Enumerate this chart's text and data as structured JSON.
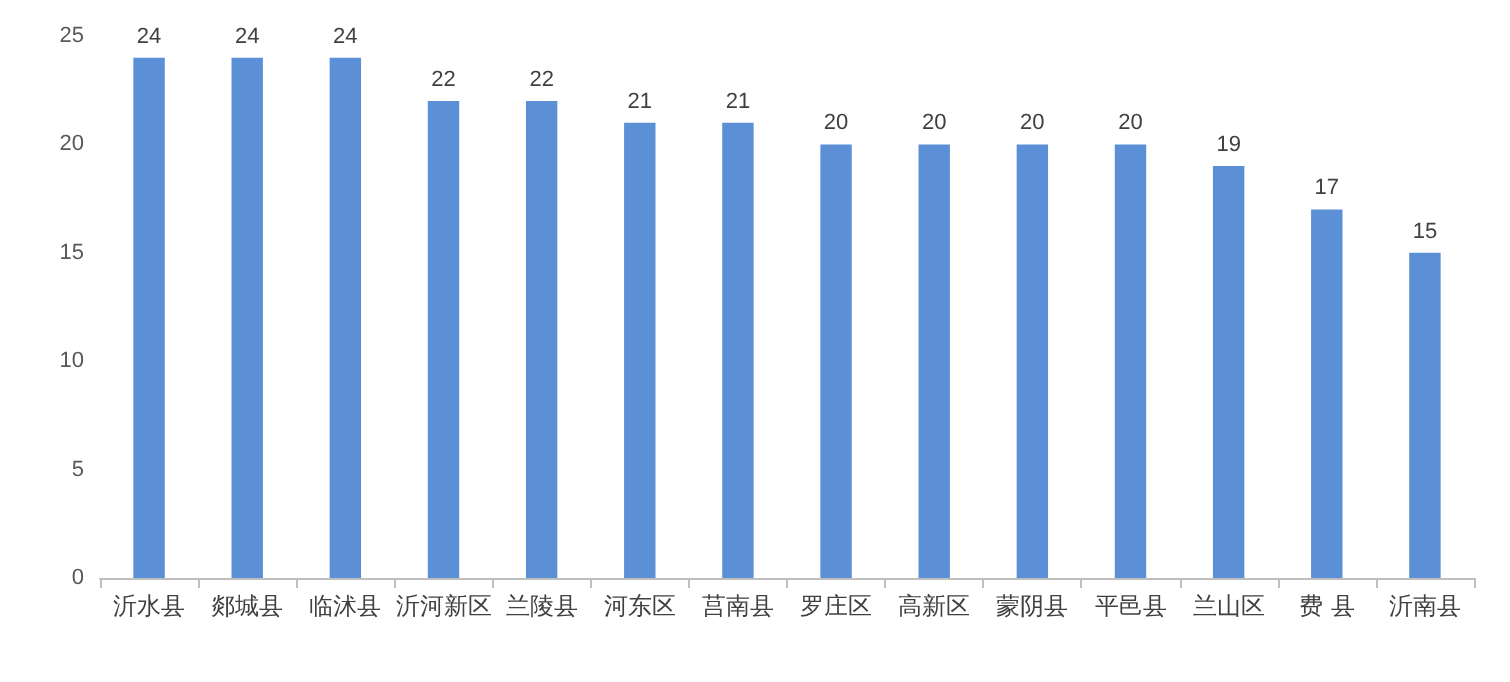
{
  "chart_data": {
    "type": "bar",
    "categories": [
      "沂水县",
      "郯城县",
      "临沭县",
      "沂河新区",
      "兰陵县",
      "河东区",
      "莒南县",
      "罗庄区",
      "高新区",
      "蒙阴县",
      "平邑县",
      "兰山区",
      "费 县",
      "沂南县"
    ],
    "values": [
      24,
      24,
      24,
      22,
      22,
      21,
      21,
      20,
      20,
      20,
      20,
      19,
      17,
      15
    ],
    "color": "#5b8fd6",
    "ylim": [
      0,
      25
    ],
    "yticks": [
      0,
      5,
      10,
      15,
      20,
      25
    ],
    "grid": false,
    "data_labels": true
  }
}
